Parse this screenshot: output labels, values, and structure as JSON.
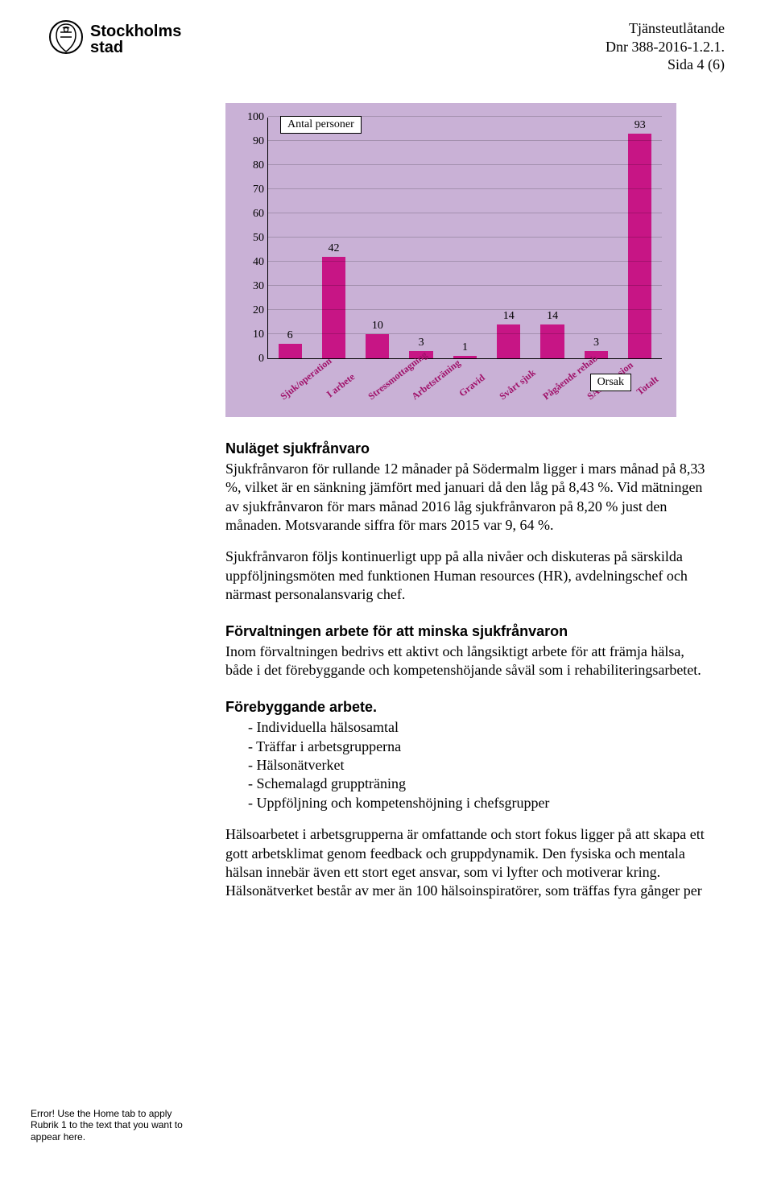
{
  "header": {
    "org_line1": "Stockholms",
    "org_line2": "stad",
    "meta1": "Tjänsteutlåtande",
    "meta2": "Dnr 388-2016-1.2.1.",
    "meta3": "Sida 4 (6)"
  },
  "chart": {
    "legend_top": "Antal personer",
    "legend_bottom": "Orsak",
    "y_ticks": [
      0,
      10,
      20,
      30,
      40,
      50,
      60,
      70,
      80,
      90,
      100
    ],
    "y_max": 100,
    "bar_color": "#c71585",
    "bg_color": "#c9b1d6",
    "grid_color": "rgba(0,0,0,0.18)",
    "categories": [
      {
        "label": "Sjuk/operation",
        "value": 6
      },
      {
        "label": "I arbete",
        "value": 42
      },
      {
        "label": "Stressmottagning",
        "value": 10
      },
      {
        "label": "Arbetsträning",
        "value": 3
      },
      {
        "label": "Gravid",
        "value": 1
      },
      {
        "label": "Svårt sjuk",
        "value": 14
      },
      {
        "label": "Pågående rehab",
        "value": 14
      },
      {
        "label": "SAP/ pension",
        "value": 3
      },
      {
        "label": "Totalt",
        "value": 93
      }
    ]
  },
  "body": {
    "h1": "Nuläget sjukfrånvaro",
    "p1": "Sjukfrånvaron för rullande 12 månader på Södermalm ligger i mars månad på 8,33 %, vilket är en sänkning jämfört med januari då den låg på 8,43 %. Vid mätningen av sjukfrånvaron för mars månad 2016 låg sjukfrånvaron på 8,20 % just den månaden. Motsvarande siffra för mars 2015 var 9, 64 %.",
    "p2": "Sjukfrånvaron följs kontinuerligt upp på alla nivåer och diskuteras på särskilda uppföljningsmöten med funktionen Human resources (HR), avdelningschef och närmast personalansvarig chef.",
    "h2": "Förvaltningen arbete för att minska sjukfrånvaron",
    "p3": "Inom förvaltningen bedrivs ett aktivt och långsiktigt arbete för att främja hälsa, både i det förebyggande och kompetenshöjande såväl som i rehabiliteringsarbetet.",
    "h3": "Förebyggande arbete.",
    "bullets": [
      "Individuella hälsosamtal",
      "Träffar i arbetsgrupperna",
      "Hälsonätverket",
      "Schemalagd gruppträning",
      "Uppföljning och kompetenshöjning i chefsgrupper"
    ],
    "p4": "Hälsoarbetet i arbetsgrupperna är omfattande och stort fokus ligger på att skapa ett gott arbetsklimat genom feedback och gruppdynamik. Den fysiska och mentala hälsan innebär även ett stort eget ansvar, som vi lyfter och motiverar kring. Hälsonätverket består av mer än 100 hälsoinspiratörer, som träffas fyra gånger per"
  },
  "footer": {
    "note": "Error! Use the Home tab to apply Rubrik 1 to the text that you want to appear here."
  }
}
